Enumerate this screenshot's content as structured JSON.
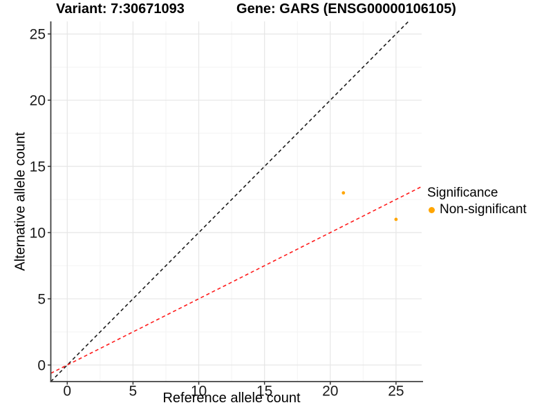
{
  "titles": {
    "left": "Variant: 7:30671093",
    "right": "Gene: GARS (ENSG00000106105)"
  },
  "chart_data": {
    "type": "scatter",
    "title": "Variant: 7:30671093   Gene: GARS (ENSG00000106105)",
    "xlabel": "Reference allele count",
    "ylabel": "Alternative allele count",
    "xlim": [
      -1.25,
      26.95
    ],
    "ylim": [
      -1.25,
      25.95
    ],
    "xticks": [
      0,
      5,
      10,
      15,
      20,
      25
    ],
    "yticks": [
      0,
      5,
      10,
      15,
      20,
      25
    ],
    "minor_ticks_x": [
      2.5,
      7.5,
      12.5,
      17.5,
      22.5
    ],
    "minor_ticks_y": [
      2.5,
      7.5,
      12.5,
      17.5,
      22.5
    ],
    "grid": "on",
    "legend_position": "right",
    "series": [
      {
        "name": "Non-significant",
        "color": "#FFA500",
        "points": [
          {
            "x": 21,
            "y": 13
          },
          {
            "x": 25,
            "y": 11
          }
        ]
      }
    ],
    "reference_lines": [
      {
        "name": "identity-line",
        "slope": 1,
        "intercept": 0,
        "color": "#1a1a1a",
        "style": "dashed"
      },
      {
        "name": "expected-ratio-line",
        "slope": 0.5,
        "intercept": 0,
        "color": "#ff1a1a",
        "style": "dashed"
      }
    ],
    "legend": {
      "title": "Significance",
      "items": [
        {
          "label": "Non-significant",
          "color": "#FFA500"
        }
      ]
    },
    "colors": {
      "grid_major": "#e6e6e6",
      "grid_minor": "#f3f3f3",
      "axis_line": "#404040",
      "tick_mark": "#333333",
      "tick_label": "#1a1a1a",
      "point_fill": "#FFA500"
    }
  }
}
